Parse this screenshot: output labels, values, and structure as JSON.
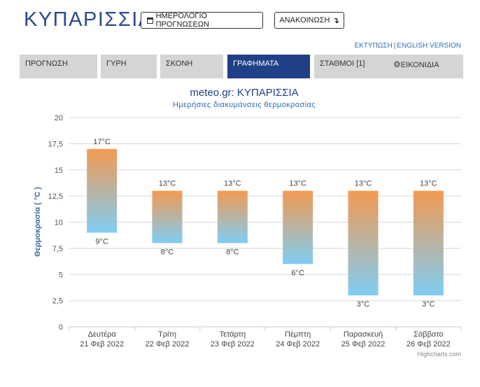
{
  "header": {
    "city": "ΚΥΠΑΡΙΣΣΙΑ",
    "calendar_button": "ΗΜΕΡΟΛΟΓΙΟ ΠΡΟΓΝΩΣΕΩΝ",
    "announcement_button": "ΑΝΑΚΟΙΝΩΣΗ",
    "announcement_arrow": "↴",
    "print_link": "ΕΚΤΥΠΩΣΗ",
    "separator": "|",
    "english_link": "ENGLISH VERSION"
  },
  "tabs": [
    {
      "label": "ΠΡΟΓΝΩΣΗ",
      "active": false
    },
    {
      "label": "ΓΥΡΗ",
      "active": false
    },
    {
      "label": "ΣΚΟΝΗ",
      "active": false
    },
    {
      "label": "ΓΡΑΦΗΜΑΤΑ",
      "active": true
    },
    {
      "label": "ΣΤΑΘΜΟΙ [1]",
      "active": false
    },
    {
      "label": "ΕΙΚΟΝΙΔΙΑ",
      "active": false
    }
  ],
  "tab_icons": {
    "ΕΙΚΟΝΙΔΙΑ": "gear-icon"
  },
  "chart_data": {
    "type": "bar",
    "title": "meteo.gr: ΚΥΠΑΡΙΣΣΙΑ",
    "subtitle": "Ημερήσιες διακυμάνσεις θερμοκρασίας",
    "ylabel": "Θερμοκρασία ( °C )",
    "xlabel": "",
    "ylim": [
      0,
      20
    ],
    "yticks": [
      "0",
      "2,5",
      "5",
      "7,5",
      "10",
      "12,5",
      "15",
      "17,5",
      "20"
    ],
    "categories": [
      {
        "day": "Δευτέρα",
        "date": "21 Φεβ 2022"
      },
      {
        "day": "Τρίτη",
        "date": "22 Φεβ 2022"
      },
      {
        "day": "Τετάρτη",
        "date": "23 Φεβ 2022"
      },
      {
        "day": "Πέμπτη",
        "date": "24 Φεβ 2022"
      },
      {
        "day": "Παρασκευή",
        "date": "25 Φεβ 2022"
      },
      {
        "day": "Σάββατο",
        "date": "26 Φεβ 2022"
      }
    ],
    "low": [
      9,
      8,
      8,
      6,
      3,
      3
    ],
    "high": [
      17,
      13,
      13,
      13,
      13,
      13
    ],
    "low_labels": [
      "9°C",
      "8°C",
      "8°C",
      "6°C",
      "3°C",
      "3°C"
    ],
    "high_labels": [
      "17°C",
      "13°C",
      "13°C",
      "13°C",
      "13°C",
      "13°C"
    ],
    "grid": true,
    "colors": {
      "top": "#f39a52",
      "bottom": "#7fcdf3",
      "title": "#1f3f87",
      "subtitle": "#2e6db5",
      "ylabel": "#3c6aa0"
    },
    "credits": "Highcharts.com"
  }
}
